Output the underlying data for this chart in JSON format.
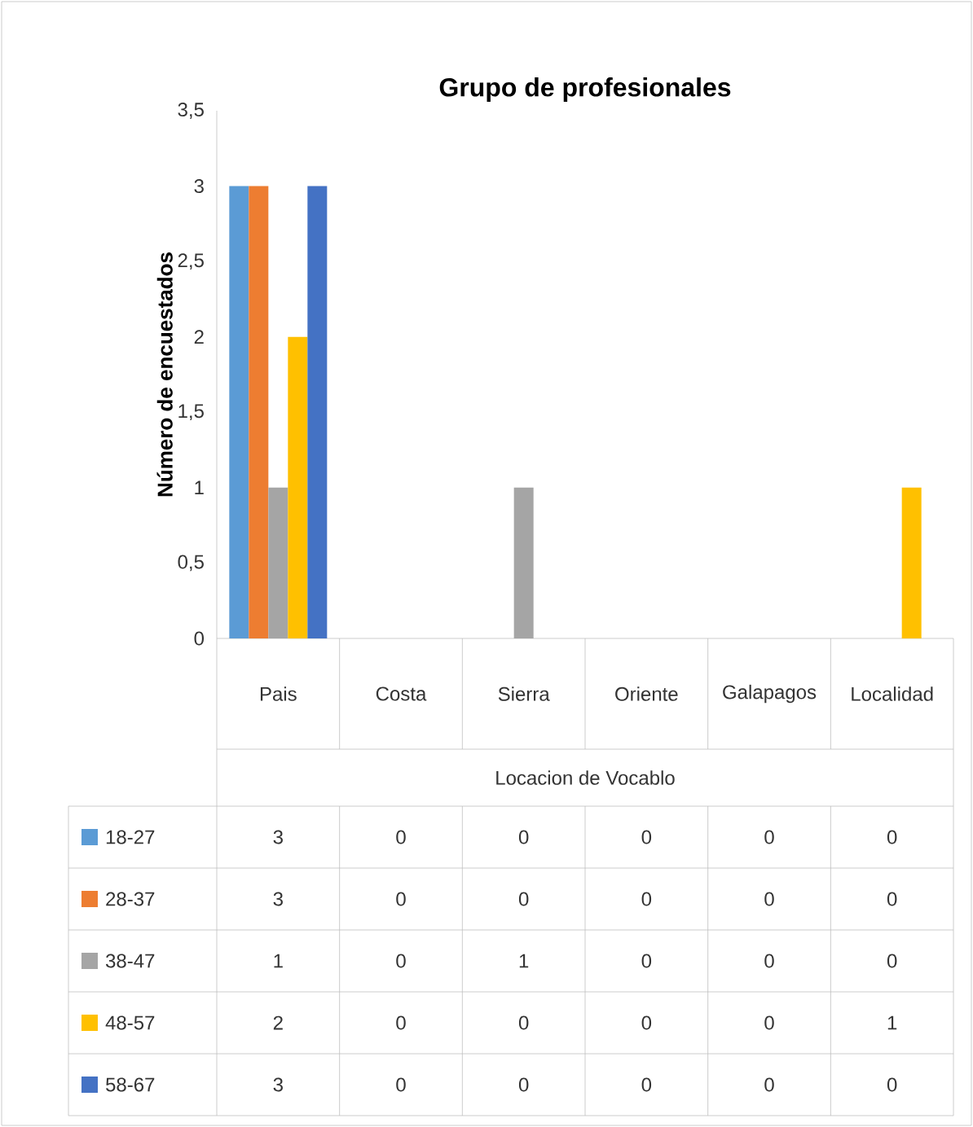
{
  "chart_data": {
    "type": "bar",
    "title": "Grupo de profesionales",
    "xlabel": "Locacion de Vocablo",
    "ylabel": "Número de encuestados",
    "categories": [
      "Pais",
      "Costa",
      "Sierra",
      "Oriente",
      "Galapagos",
      "Localidad"
    ],
    "series": [
      {
        "name": "18-27",
        "color": "#5b9bd5",
        "values": [
          3,
          0,
          0,
          0,
          0,
          0
        ]
      },
      {
        "name": "28-37",
        "color": "#ed7d31",
        "values": [
          3,
          0,
          0,
          0,
          0,
          0
        ]
      },
      {
        "name": "38-47",
        "color": "#a5a5a5",
        "values": [
          1,
          0,
          1,
          0,
          0,
          0
        ]
      },
      {
        "name": "48-57",
        "color": "#ffc000",
        "values": [
          2,
          0,
          0,
          0,
          0,
          1
        ]
      },
      {
        "name": "58-67",
        "color": "#4472c4",
        "values": [
          3,
          0,
          0,
          0,
          0,
          0
        ]
      }
    ],
    "ylim": [
      0,
      3.5
    ],
    "yticks": [
      0,
      {
        "value": 0.5,
        "label": "0,5"
      },
      1,
      {
        "value": 1.5,
        "label": "1,5"
      },
      2,
      {
        "value": 2.5,
        "label": "2,5"
      },
      3,
      {
        "value": 3.5,
        "label": "3,5"
      }
    ],
    "data_labels": true,
    "legend": "bottom"
  }
}
